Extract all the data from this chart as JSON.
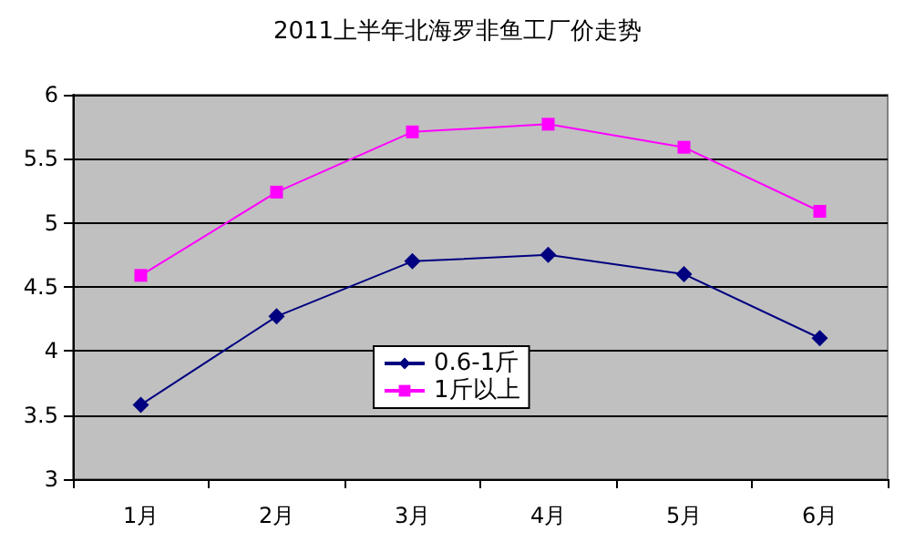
{
  "chart_data": {
    "type": "line",
    "title": "2011上半年北海罗非鱼工厂价走势",
    "categories": [
      "1月",
      "2月",
      "3月",
      "4月",
      "5月",
      "6月"
    ],
    "series": [
      {
        "name": "0.6-1斤",
        "color": "#000080",
        "marker": "diamond",
        "values": [
          3.58,
          4.27,
          4.7,
          4.75,
          4.6,
          4.1
        ]
      },
      {
        "name": "1斤以上",
        "color": "#ff00ff",
        "marker": "square",
        "values": [
          4.59,
          5.24,
          5.71,
          5.77,
          5.59,
          5.09
        ]
      }
    ],
    "ylim": [
      3,
      6
    ],
    "yticks": [
      3,
      3.5,
      4,
      4.5,
      5,
      5.5,
      6
    ],
    "grid": "y",
    "legend": "bottom"
  }
}
